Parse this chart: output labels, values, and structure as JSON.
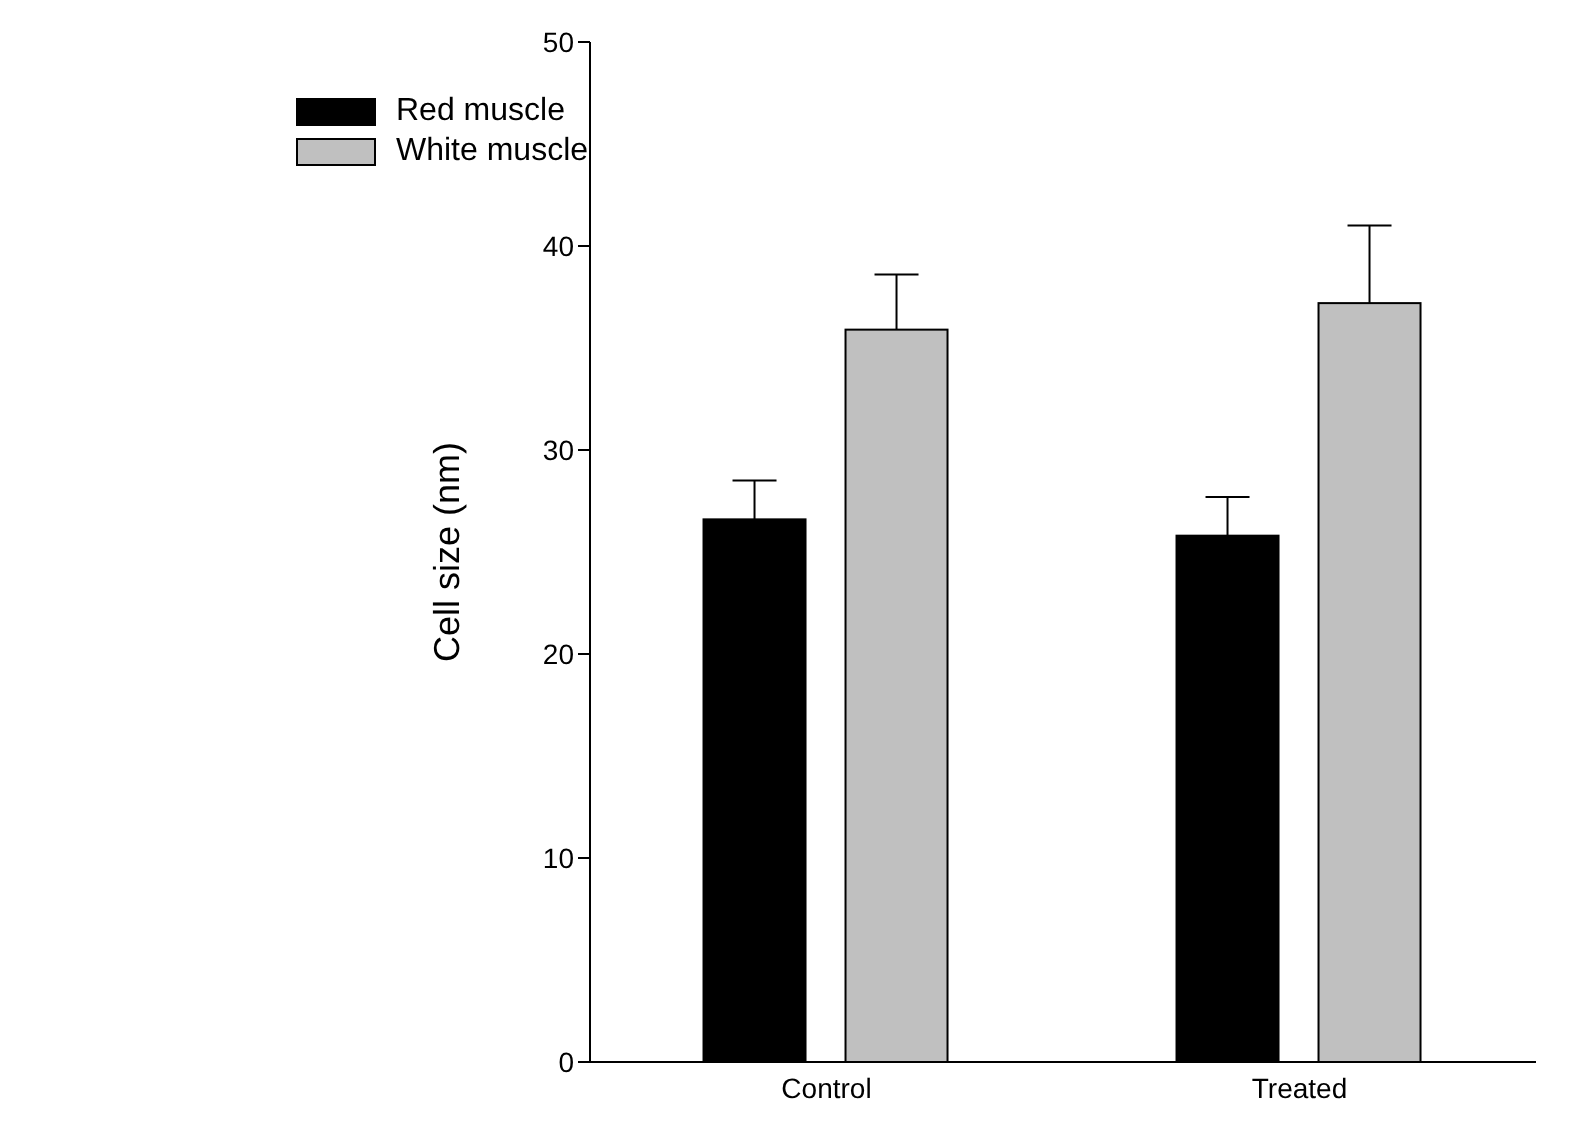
{
  "chart_data": {
    "type": "bar",
    "ylabel": "Cell size (nm)",
    "categories": [
      "Control",
      "Treated"
    ],
    "series": [
      {
        "name": "Red muscle",
        "color": "#000000",
        "values": [
          26.6,
          25.8
        ],
        "errors": [
          [
            26.6,
            28.5
          ],
          [
            25.8,
            27.7
          ]
        ]
      },
      {
        "name": "White muscle",
        "color": "#c0c0c0",
        "values": [
          35.9,
          37.2
        ],
        "errors": [
          [
            35.9,
            38.6
          ],
          [
            37.2,
            41.0
          ]
        ]
      }
    ],
    "ylim": [
      0,
      50
    ],
    "yticks": [
      0,
      10,
      20,
      30,
      40,
      50
    ],
    "legend": "top left",
    "grid": false
  }
}
